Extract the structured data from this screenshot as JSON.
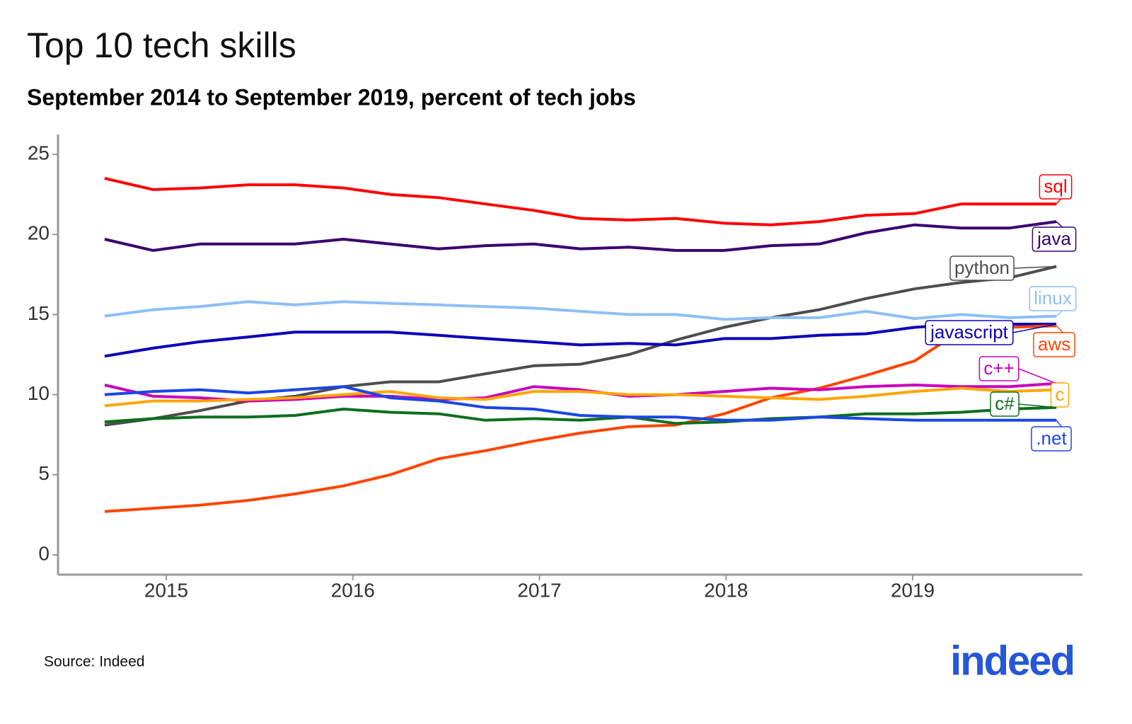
{
  "chart_data": {
    "type": "line",
    "title": "Top 10 tech skills",
    "subtitle": "September 2014 to September 2019, percent of tech jobs",
    "source": "Source: Indeed",
    "logo": "indeed",
    "x": [
      2014.67,
      2014.93,
      2015.18,
      2015.44,
      2015.69,
      2015.95,
      2016.2,
      2016.46,
      2016.71,
      2016.97,
      2017.22,
      2017.48,
      2017.73,
      2017.99,
      2018.24,
      2018.5,
      2018.75,
      2019.01,
      2019.26,
      2019.52,
      2019.77
    ],
    "xlim": [
      2014.42,
      2019.91
    ],
    "xticks": [
      2015,
      2016,
      2017,
      2018,
      2019
    ],
    "ylim": [
      -1.24,
      26.24
    ],
    "yticks": [
      0,
      5,
      10,
      15,
      20,
      25
    ],
    "grid": false,
    "series": [
      {
        "name": "sql",
        "color": "#ff0000",
        "values": [
          23.5,
          22.8,
          22.9,
          23.1,
          23.1,
          22.9,
          22.5,
          22.3,
          21.9,
          21.5,
          21.0,
          20.9,
          21.0,
          20.7,
          20.6,
          20.8,
          21.2,
          21.3,
          21.9,
          21.9,
          21.9
        ]
      },
      {
        "name": "java",
        "color": "#3a006f",
        "values": [
          19.7,
          19.0,
          19.4,
          19.4,
          19.4,
          19.7,
          19.4,
          19.1,
          19.3,
          19.4,
          19.1,
          19.2,
          19.0,
          19.0,
          19.3,
          19.4,
          20.1,
          20.6,
          20.4,
          20.4,
          20.8
        ]
      },
      {
        "name": "python",
        "color": "#4d4d4d",
        "values": [
          8.1,
          8.5,
          9.0,
          9.6,
          9.9,
          10.5,
          10.8,
          10.8,
          11.3,
          11.8,
          11.9,
          12.5,
          13.4,
          14.2,
          14.8,
          15.3,
          16.0,
          16.6,
          17.0,
          17.3,
          18.0
        ]
      },
      {
        "name": "linux",
        "color": "#8ebff7",
        "values": [
          14.9,
          15.3,
          15.5,
          15.8,
          15.6,
          15.8,
          15.7,
          15.6,
          15.5,
          15.4,
          15.2,
          15.0,
          15.0,
          14.7,
          14.8,
          14.8,
          15.2,
          14.75,
          15.0,
          14.8,
          14.9
        ]
      },
      {
        "name": "javascript",
        "color": "#0c00b8",
        "values": [
          12.4,
          12.9,
          13.3,
          13.6,
          13.9,
          13.9,
          13.9,
          13.7,
          13.5,
          13.3,
          13.1,
          13.2,
          13.1,
          13.5,
          13.5,
          13.7,
          13.8,
          14.2,
          14.4,
          14.4,
          14.4
        ]
      },
      {
        "name": "aws",
        "color": "#ff4500",
        "values": [
          2.7,
          2.9,
          3.1,
          3.4,
          3.8,
          4.3,
          5.0,
          6.0,
          6.5,
          7.1,
          7.6,
          8.0,
          8.1,
          8.8,
          9.8,
          10.4,
          11.2,
          12.1,
          14.0,
          14.2,
          14.3
        ]
      },
      {
        "name": "c++",
        "color": "#c800c0",
        "values": [
          10.6,
          9.9,
          9.8,
          9.6,
          9.7,
          9.9,
          9.9,
          9.7,
          9.8,
          10.5,
          10.3,
          9.9,
          10.0,
          10.2,
          10.4,
          10.3,
          10.5,
          10.6,
          10.5,
          10.5,
          10.7
        ]
      },
      {
        "name": "c",
        "color": "#ffa500",
        "values": [
          9.3,
          9.6,
          9.6,
          9.7,
          9.8,
          10.0,
          10.2,
          9.8,
          9.7,
          10.2,
          10.2,
          10.0,
          10.0,
          9.9,
          9.8,
          9.7,
          9.9,
          10.2,
          10.4,
          10.2,
          10.3
        ]
      },
      {
        "name": "c#",
        "color": "#0e6e1e",
        "values": [
          8.3,
          8.5,
          8.6,
          8.6,
          8.7,
          9.1,
          8.9,
          8.8,
          8.4,
          8.5,
          8.4,
          8.6,
          8.2,
          8.3,
          8.5,
          8.6,
          8.8,
          8.8,
          8.9,
          9.1,
          9.2
        ]
      },
      {
        "name": ".net",
        "color": "#1a46e6",
        "values": [
          10.0,
          10.2,
          10.3,
          10.1,
          10.3,
          10.5,
          9.8,
          9.6,
          9.2,
          9.1,
          8.7,
          8.6,
          8.6,
          8.4,
          8.4,
          8.6,
          8.5,
          8.4,
          8.4,
          8.4,
          8.4
        ]
      }
    ]
  }
}
